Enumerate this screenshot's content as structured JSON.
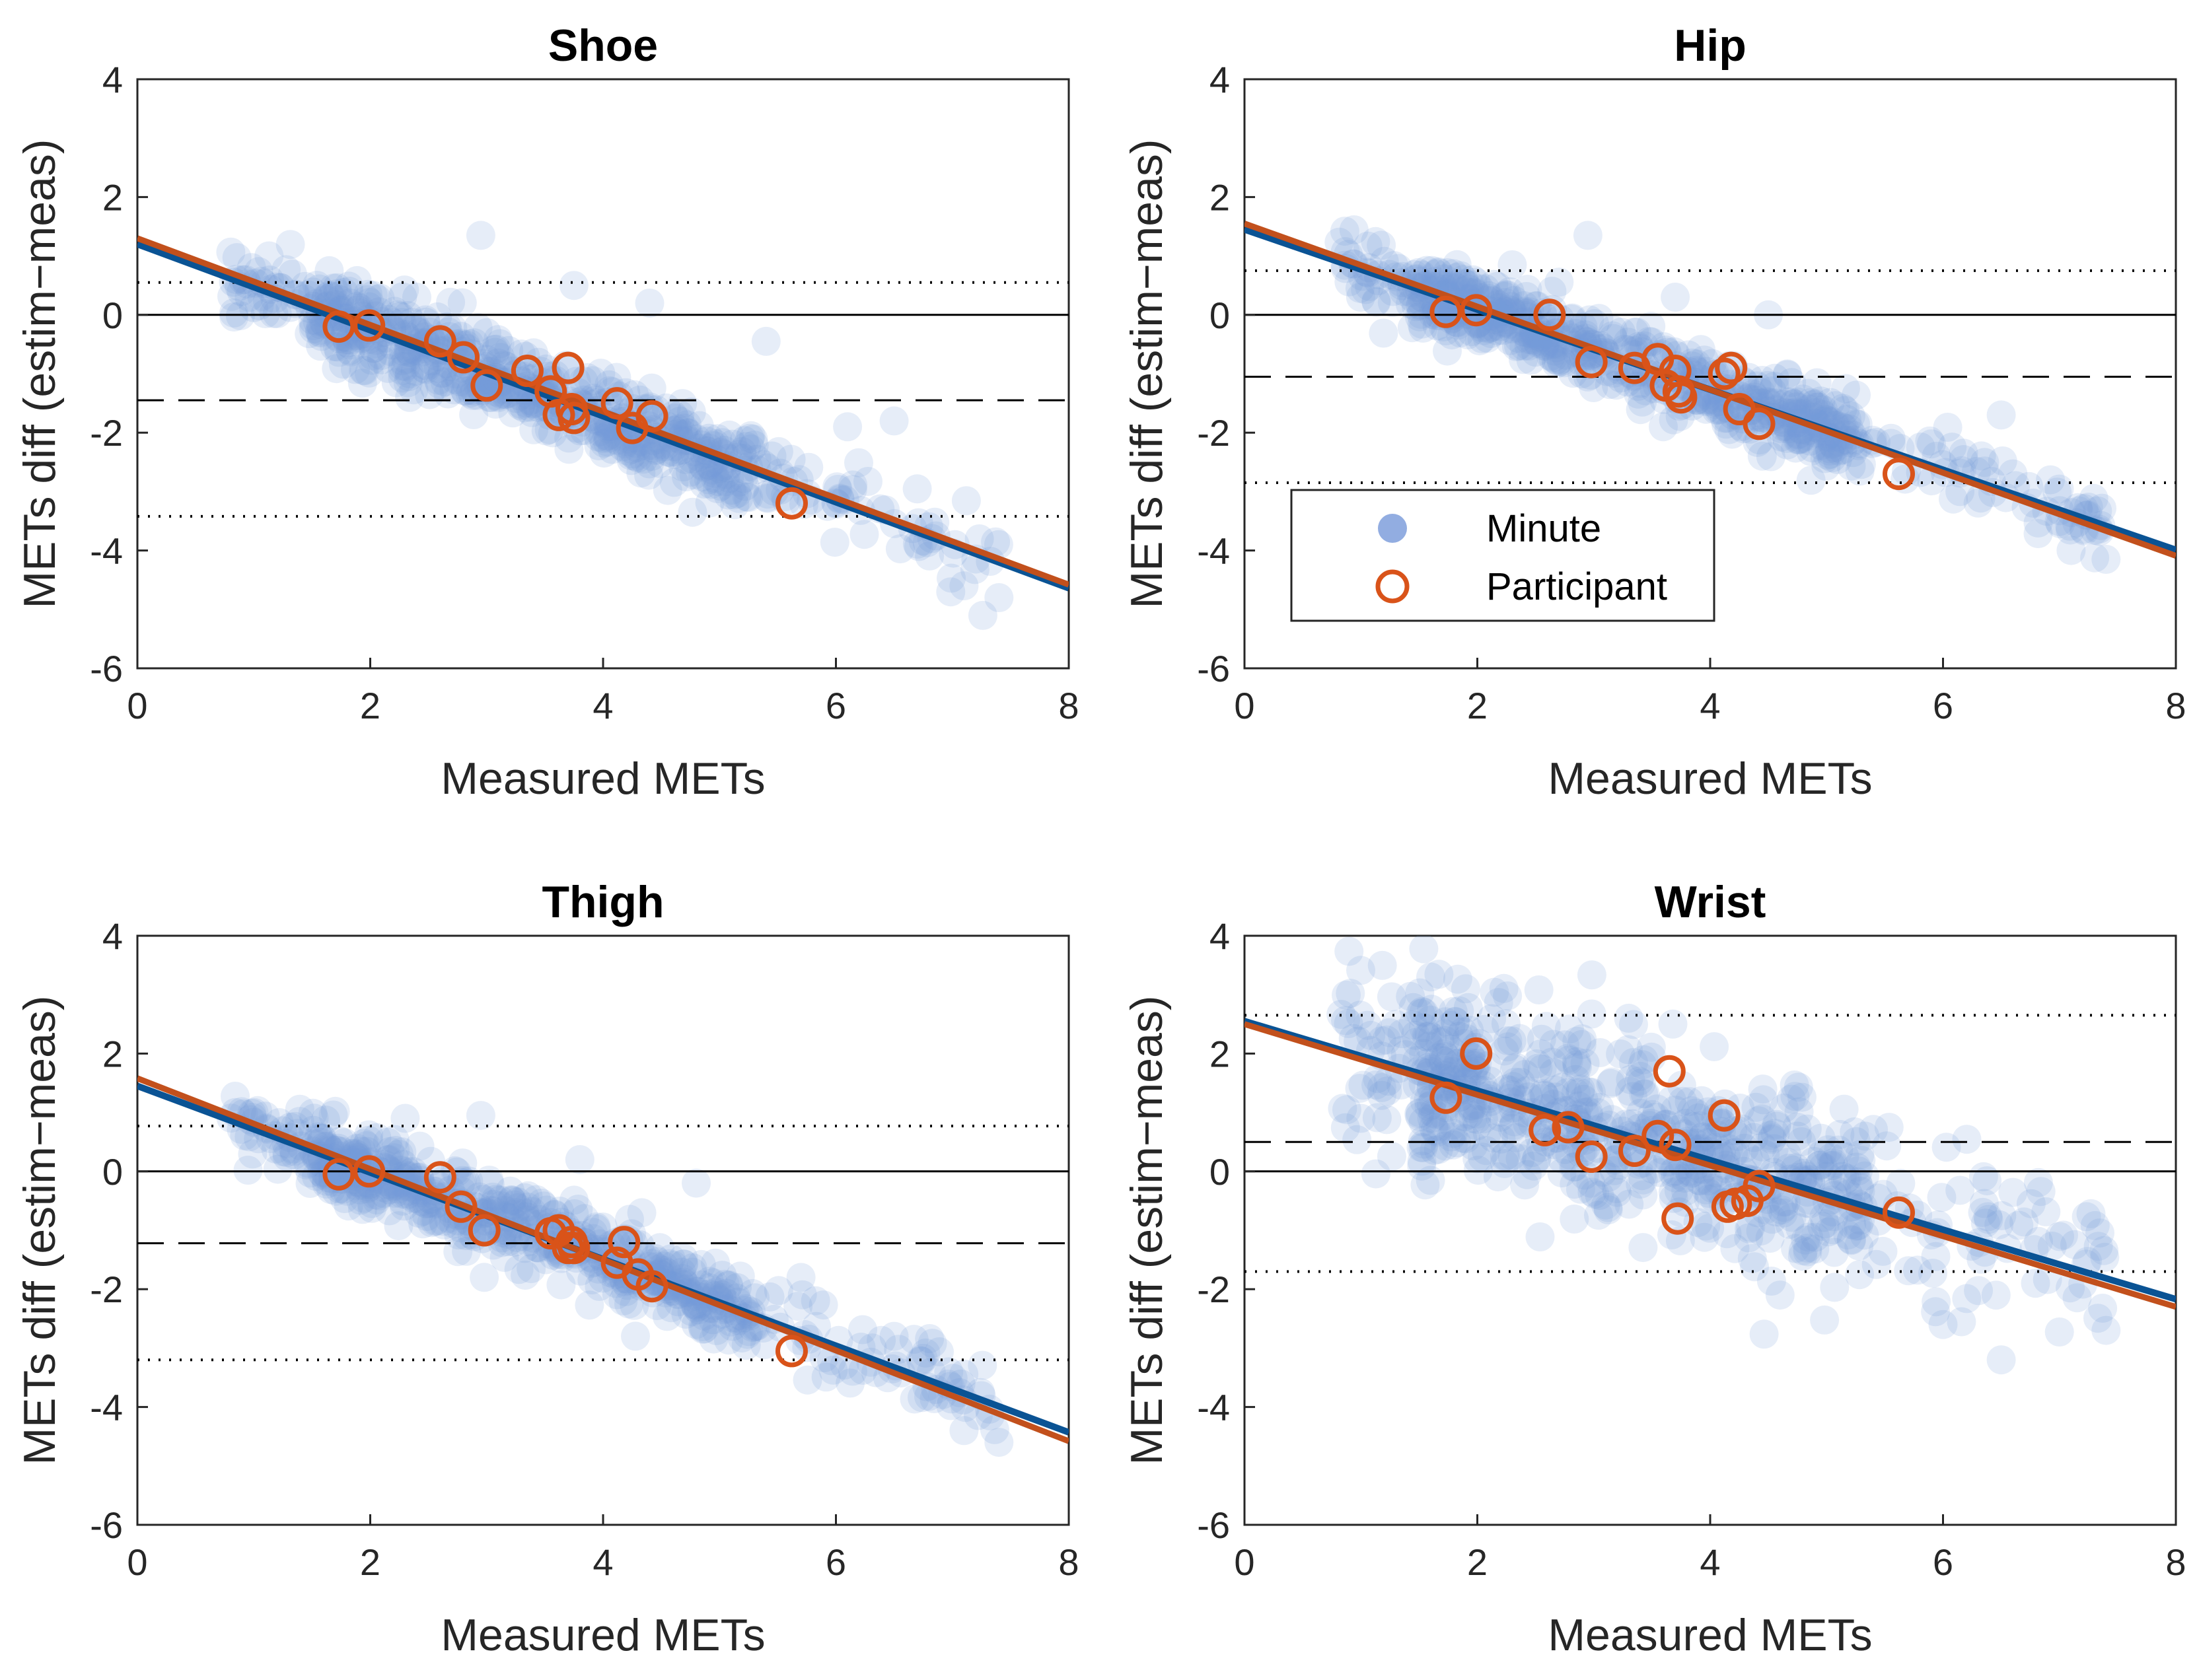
{
  "colors": {
    "minute_points": "#7799d9",
    "participant_marker": "#d95319",
    "minute_fit": "#0a5394",
    "participant_fit": "#c2501c",
    "reference_lines": "#000000"
  },
  "legend": {
    "minute_label": "Minute",
    "participant_label": "Participant",
    "minute_icon": "filled-circle-icon",
    "participant_icon": "open-circle-icon"
  },
  "chart_data": [
    {
      "type": "scatter",
      "title": "Shoe",
      "xlabel": "Measured METs",
      "ylabel": "METs diff (estim−meas)",
      "xlim": [
        0,
        8
      ],
      "ylim": [
        -6,
        4
      ],
      "xticks": [
        0,
        2,
        4,
        6,
        8
      ],
      "yticks": [
        -6,
        -4,
        -2,
        0,
        2,
        4
      ],
      "xtick_labels": [
        "0",
        "2",
        "4",
        "6",
        "8"
      ],
      "ytick_labels": [
        "-6",
        "-4",
        "-2",
        "0",
        "2",
        "4"
      ],
      "zero_line": 0,
      "mean_bias": -1.45,
      "limits_of_agreement": [
        0.55,
        -3.42
      ],
      "fit_minute": {
        "intercept": 1.2,
        "slope": -0.73
      },
      "fit_participant": {
        "intercept": 1.3,
        "slope": -0.735
      },
      "minute_scatter": {
        "x_range": [
          0.8,
          7.4
        ],
        "residual_sd": 0.35,
        "count": 700,
        "extra_points": [
          [
            2.95,
            1.35
          ],
          [
            5.4,
            -0.45
          ],
          [
            6.5,
            -1.8
          ],
          [
            6.1,
            -1.9
          ],
          [
            4.4,
            0.2
          ],
          [
            3.75,
            0.5
          ],
          [
            2.4,
            0.3
          ],
          [
            7.4,
            -4.8
          ],
          [
            7.1,
            -4.6
          ]
        ]
      },
      "participants": {
        "x": [
          1.73,
          1.99,
          2.6,
          2.8,
          3.0,
          3.35,
          3.55,
          3.62,
          3.7,
          3.73,
          3.75,
          4.12,
          4.25,
          4.42,
          5.62
        ],
        "y": [
          -0.2,
          -0.18,
          -0.45,
          -0.72,
          -1.2,
          -0.95,
          -1.3,
          -1.7,
          -0.9,
          -1.6,
          -1.75,
          -1.5,
          -1.92,
          -1.72,
          -3.2
        ]
      }
    },
    {
      "type": "scatter",
      "title": "Hip",
      "xlabel": "Measured METs",
      "ylabel": "METs diff (estim−meas)",
      "xlim": [
        0,
        8
      ],
      "ylim": [
        -6,
        4
      ],
      "xticks": [
        0,
        2,
        4,
        6,
        8
      ],
      "yticks": [
        -6,
        -4,
        -2,
        0,
        2,
        4
      ],
      "xtick_labels": [
        "0",
        "2",
        "4",
        "6",
        "8"
      ],
      "ytick_labels": [
        "-6",
        "-4",
        "-2",
        "0",
        "2",
        "4"
      ],
      "zero_line": 0,
      "mean_bias": -1.05,
      "limits_of_agreement": [
        0.75,
        -2.85
      ],
      "fit_minute": {
        "intercept": 1.45,
        "slope": -0.68
      },
      "fit_participant": {
        "intercept": 1.55,
        "slope": -0.705
      },
      "minute_scatter": {
        "x_range": [
          0.8,
          7.4
        ],
        "residual_sd": 0.3,
        "count": 700,
        "extra_points": [
          [
            2.95,
            1.35
          ],
          [
            6.5,
            -1.7
          ],
          [
            2.3,
            0.85
          ],
          [
            6.6,
            -2.7
          ],
          [
            7.4,
            -4.15
          ],
          [
            7.1,
            -4.0
          ],
          [
            3.7,
            0.3
          ],
          [
            4.5,
            0.0
          ]
        ]
      },
      "participants": {
        "x": [
          1.73,
          1.99,
          2.62,
          2.98,
          3.35,
          3.55,
          3.62,
          3.7,
          3.73,
          3.75,
          4.12,
          4.18,
          4.25,
          4.42,
          5.62
        ],
        "y": [
          0.05,
          0.08,
          0.0,
          -0.8,
          -0.9,
          -0.75,
          -1.2,
          -0.95,
          -1.3,
          -1.4,
          -1.0,
          -0.9,
          -1.6,
          -1.85,
          -2.7
        ]
      }
    },
    {
      "type": "scatter",
      "title": "Thigh",
      "xlabel": "Measured METs",
      "ylabel": "METs diff (estim−meas)",
      "xlim": [
        0,
        8
      ],
      "ylim": [
        -6,
        4
      ],
      "xticks": [
        0,
        2,
        4,
        6,
        8
      ],
      "yticks": [
        -6,
        -4,
        -2,
        0,
        2,
        4
      ],
      "xtick_labels": [
        "0",
        "2",
        "4",
        "6",
        "8"
      ],
      "ytick_labels": [
        "-6",
        "-4",
        "-2",
        "0",
        "2",
        "4"
      ],
      "zero_line": 0,
      "mean_bias": -1.22,
      "limits_of_agreement": [
        0.77,
        -3.2
      ],
      "fit_minute": {
        "intercept": 1.45,
        "slope": -0.735
      },
      "fit_participant": {
        "intercept": 1.58,
        "slope": -0.77
      },
      "minute_scatter": {
        "x_range": [
          0.8,
          7.4
        ],
        "residual_sd": 0.32,
        "count": 700,
        "extra_points": [
          [
            2.95,
            0.95
          ],
          [
            2.3,
            0.9
          ],
          [
            4.8,
            -0.2
          ],
          [
            6.5,
            -2.8
          ],
          [
            7.4,
            -4.6
          ],
          [
            7.1,
            -4.4
          ],
          [
            3.8,
            0.2
          ],
          [
            5.7,
            -1.8
          ]
        ]
      },
      "participants": {
        "x": [
          1.73,
          1.99,
          2.6,
          2.78,
          2.98,
          3.55,
          3.62,
          3.7,
          3.73,
          3.75,
          4.12,
          4.18,
          4.3,
          4.42,
          5.62
        ],
        "y": [
          -0.05,
          0.0,
          -0.1,
          -0.6,
          -1.0,
          -1.05,
          -1.0,
          -1.3,
          -1.2,
          -1.3,
          -1.55,
          -1.2,
          -1.75,
          -1.95,
          -3.05
        ]
      }
    },
    {
      "type": "scatter",
      "title": "Wrist",
      "xlabel": "Measured METs",
      "ylabel": "METs diff (estim−meas)",
      "xlim": [
        0,
        8
      ],
      "ylim": [
        -6,
        4
      ],
      "xticks": [
        0,
        2,
        4,
        6,
        8
      ],
      "yticks": [
        -6,
        -4,
        -2,
        0,
        2,
        4
      ],
      "xtick_labels": [
        "0",
        "2",
        "4",
        "6",
        "8"
      ],
      "ytick_labels": [
        "-6",
        "-4",
        "-2",
        "0",
        "2",
        "4"
      ],
      "zero_line": 0,
      "mean_bias": 0.5,
      "limits_of_agreement": [
        2.65,
        -1.7
      ],
      "fit_minute": {
        "intercept": 2.55,
        "slope": -0.59
      },
      "fit_participant": {
        "intercept": 2.5,
        "slope": -0.6
      },
      "minute_scatter": {
        "x_range": [
          0.8,
          7.4
        ],
        "residual_sd": 0.8,
        "count": 750,
        "extra_points": [
          [
            1.6,
            3.3
          ],
          [
            1.9,
            3.1
          ],
          [
            6.5,
            -3.2
          ],
          [
            7.4,
            -2.7
          ],
          [
            6.0,
            -2.6
          ],
          [
            1.0,
            0.9
          ],
          [
            3.3,
            2.6
          ],
          [
            4.6,
            -2.1
          ]
        ]
      },
      "participants": {
        "x": [
          1.73,
          1.99,
          2.58,
          2.78,
          2.98,
          3.35,
          3.55,
          3.65,
          3.7,
          3.72,
          4.12,
          4.15,
          4.22,
          4.32,
          4.42,
          5.62
        ],
        "y": [
          1.25,
          2.0,
          0.7,
          0.75,
          0.25,
          0.35,
          0.6,
          1.7,
          0.45,
          -0.8,
          0.95,
          -0.6,
          -0.55,
          -0.5,
          -0.25,
          -0.7
        ]
      }
    }
  ]
}
